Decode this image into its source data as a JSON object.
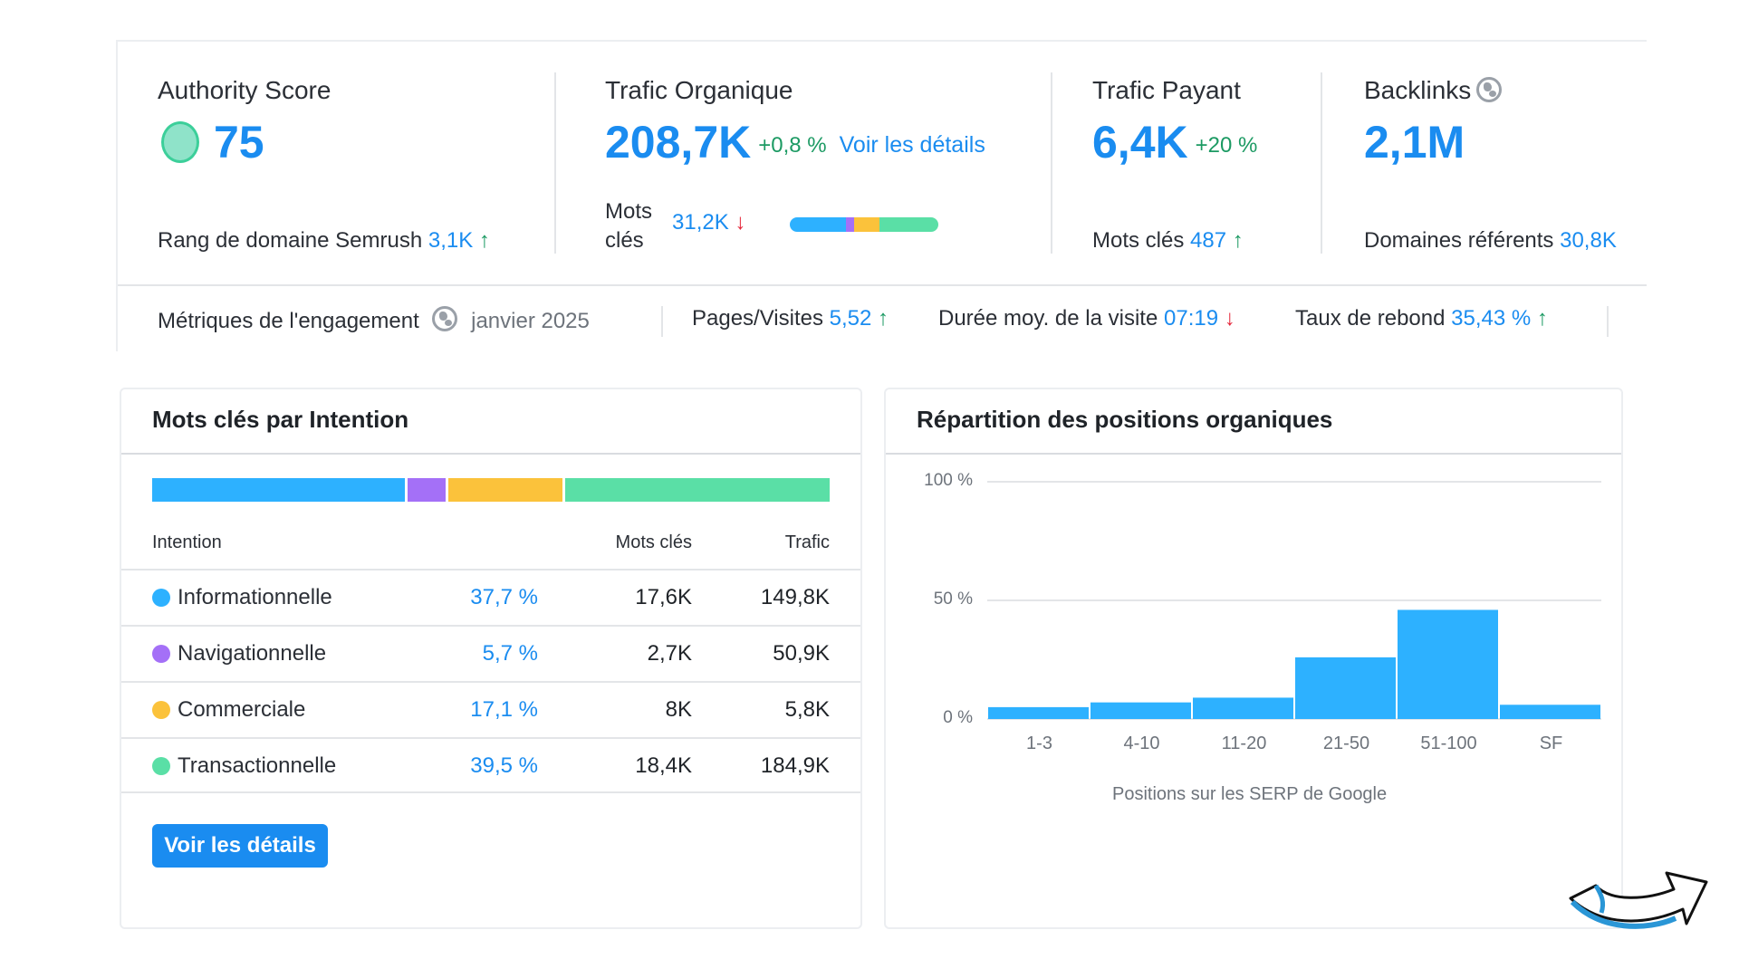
{
  "overview": {
    "authority": {
      "title": "Authority Score",
      "value": "75",
      "rank_label": "Rang de domaine Semrush",
      "rank_value": "3,1K",
      "rank_trend": "↑"
    },
    "organic": {
      "title": "Trafic Organique",
      "value": "208,7K",
      "delta": "+0,8 %",
      "details_link": "Voir les détails",
      "kw_label_1": "Mots",
      "kw_label_2": "clés",
      "kw_value": "31,2K",
      "kw_trend": "↓"
    },
    "paid": {
      "title": "Trafic Payant",
      "value": "6,4K",
      "delta": "+20 %",
      "kw_label": "Mots clés",
      "kw_value": "487",
      "kw_trend": "↑"
    },
    "backlinks": {
      "title": "Backlinks",
      "value": "2,1M",
      "ref_label": "Domaines référents",
      "ref_value": "30,8K"
    }
  },
  "engagement": {
    "label": "Métriques de l'engagement",
    "date": "janvier 2025",
    "pages_label": "Pages/Visites",
    "pages_value": "5,52",
    "pages_trend": "↑",
    "duration_label": "Durée moy. de la visite",
    "duration_value": "07:19",
    "duration_trend": "↓",
    "bounce_label": "Taux de rebond",
    "bounce_value": "35,43 %",
    "bounce_trend": "↑"
  },
  "intent_panel": {
    "title": "Mots clés par Intention",
    "headers": {
      "intent": "Intention",
      "keywords": "Mots clés",
      "traffic": "Trafic"
    },
    "rows": [
      {
        "name": "Informationnelle",
        "share": "37,7 %",
        "keywords": "17,6K",
        "traffic": "149,8K",
        "color": "#2db1ff"
      },
      {
        "name": "Navigationnelle",
        "share": "5,7 %",
        "keywords": "2,7K",
        "traffic": "50,9K",
        "color": "#a470f7"
      },
      {
        "name": "Commerciale",
        "share": "17,1 %",
        "keywords": "8K",
        "traffic": "5,8K",
        "color": "#fbc23b"
      },
      {
        "name": "Transactionnelle",
        "share": "39,5 %",
        "keywords": "18,4K",
        "traffic": "184,9K",
        "color": "#5adfa6"
      }
    ],
    "bar_shares": [
      37.7,
      5.7,
      17.1,
      39.5
    ],
    "button": "Voir les détails"
  },
  "positions_panel": {
    "title": "Répartition des positions organiques",
    "chart_data": {
      "type": "bar",
      "categories": [
        "1-3",
        "4-10",
        "11-20",
        "21-50",
        "51-100",
        "SF"
      ],
      "values": [
        5,
        7,
        9,
        26,
        46,
        6
      ],
      "ylim": [
        0,
        100
      ],
      "yticks": [
        "100 %",
        "50 %",
        "0 %"
      ],
      "xlabel": "Positions sur les SERP de Google",
      "bar_color": "#2db1ff",
      "grid": true
    }
  },
  "colors": {
    "accent": "#1a8cf0",
    "positive": "#1c9a63",
    "negative": "#e5273b"
  },
  "icons": [
    "globe-icon",
    "arrow-up-icon",
    "arrow-down-icon",
    "curved-arrow-icon"
  ]
}
